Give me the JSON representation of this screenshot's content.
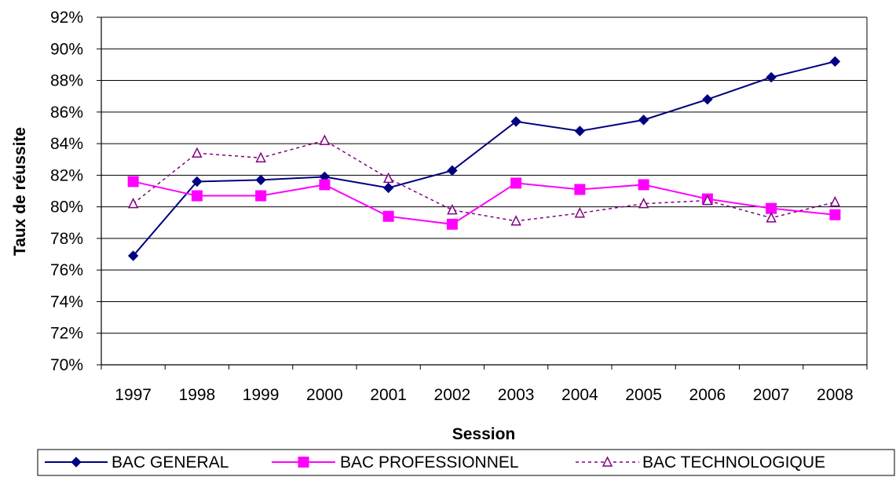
{
  "chart_data": {
    "type": "line",
    "title": "",
    "xlabel": "Session",
    "ylabel": "Taux de réussite",
    "categories": [
      "1997",
      "1998",
      "1999",
      "2000",
      "2001",
      "2002",
      "2003",
      "2004",
      "2005",
      "2006",
      "2007",
      "2008"
    ],
    "ylim": [
      70,
      92
    ],
    "ytick_step": 2,
    "ytick_labels": [
      "70%",
      "72%",
      "74%",
      "76%",
      "78%",
      "80%",
      "82%",
      "84%",
      "86%",
      "88%",
      "90%",
      "92%"
    ],
    "grid": "horizontal",
    "legend_position": "bottom",
    "series": [
      {
        "name": "BAC GENERAL",
        "color": "#000080",
        "marker": "diamond",
        "line_style": "solid",
        "values": [
          76.9,
          81.6,
          81.7,
          81.9,
          81.2,
          82.3,
          85.4,
          84.8,
          85.5,
          86.8,
          88.2,
          89.2
        ]
      },
      {
        "name": "BAC PROFESSIONNEL",
        "color": "#FF00FF",
        "marker": "square",
        "line_style": "solid",
        "values": [
          81.6,
          80.7,
          80.7,
          81.4,
          79.4,
          78.9,
          81.5,
          81.1,
          81.4,
          80.5,
          79.9,
          79.5
        ]
      },
      {
        "name": "BAC TECHNOLOGIQUE",
        "color": "#800080",
        "marker": "triangle-open",
        "line_style": "dashed",
        "values": [
          80.2,
          83.4,
          83.1,
          84.2,
          81.8,
          79.8,
          79.1,
          79.6,
          80.2,
          80.4,
          79.3,
          80.3
        ]
      }
    ]
  }
}
